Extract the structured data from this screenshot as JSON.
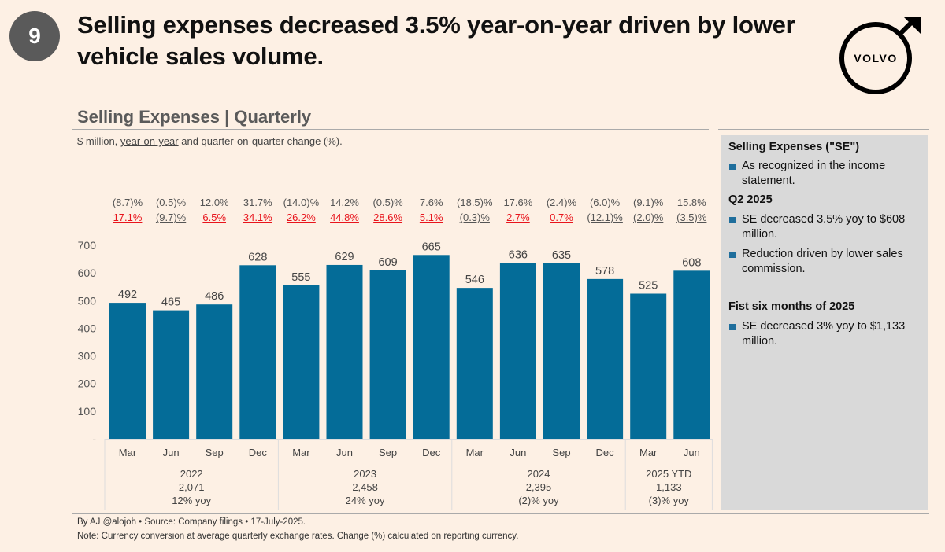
{
  "badge": "9",
  "headline": "Selling expenses decreased 3.5% year-on-year driven by lower vehicle sales volume.",
  "logo": {
    "text": "VOLVO",
    "icon": "volvo-iron-mark-icon"
  },
  "section_title": "Selling Expenses | Quarterly",
  "subtitle": {
    "prefix": "$ million, ",
    "underlined": "year-on-year",
    "suffix": " and quarter-on-quarter change (%)."
  },
  "colors": {
    "bar": "#046c98",
    "positive_yoy": "#e8141c",
    "neutral": "#555555",
    "background": "#fdf0e4",
    "sidebar": "#d9d9d9"
  },
  "sidebar": {
    "sections": [
      {
        "heading": "Selling Expenses (\"SE\")",
        "bullets": [
          "As recognized in the income statement."
        ]
      },
      {
        "heading": "Q2 2025",
        "bullets": [
          "SE decreased 3.5% yoy to $608 million.",
          "Reduction driven by lower sales commission."
        ]
      },
      {
        "heading": "Fist six months of 2025",
        "bullets": [
          "SE decreased 3% yoy to $1,133 million."
        ]
      }
    ]
  },
  "chart_data": {
    "type": "bar",
    "title": "Selling Expenses | Quarterly",
    "ylabel": "$ million",
    "ylim": [
      0,
      700
    ],
    "yticks": [
      0,
      100,
      200,
      300,
      400,
      500,
      600,
      700
    ],
    "ytick_labels": [
      "-",
      "100",
      "200",
      "300",
      "400",
      "500",
      "600",
      "700"
    ],
    "categories": [
      "Mar",
      "Jun",
      "Sep",
      "Dec",
      "Mar",
      "Jun",
      "Sep",
      "Dec",
      "Mar",
      "Jun",
      "Sep",
      "Dec",
      "Mar",
      "Jun"
    ],
    "values": [
      492,
      465,
      486,
      628,
      555,
      629,
      609,
      665,
      546,
      636,
      635,
      578,
      525,
      608
    ],
    "qoq_change": [
      "(8.7)%",
      "(0.5)%",
      "12.0%",
      "31.7%",
      "(14.0)%",
      "14.2%",
      "(0.5)%",
      "7.6%",
      "(18.5)%",
      "17.6%",
      "(2.4)%",
      "(6.0)%",
      "(9.1)%",
      "15.8%"
    ],
    "yoy_change": [
      "17.1%",
      "(9.7)%",
      "6.5%",
      "34.1%",
      "26.2%",
      "44.8%",
      "28.6%",
      "5.1%",
      "(0.3)%",
      "2.7%",
      "0.7%",
      "(12.1)%",
      "(2.0)%",
      "(3.5)%"
    ],
    "yoy_positive": [
      true,
      false,
      true,
      true,
      true,
      true,
      true,
      true,
      false,
      true,
      true,
      false,
      false,
      false
    ],
    "groups": [
      {
        "label": "2022",
        "total": "2,071",
        "change": "12% yoy",
        "count": 4
      },
      {
        "label": "2023",
        "total": "2,458",
        "change": "24% yoy",
        "count": 4
      },
      {
        "label": "2024",
        "total": "2,395",
        "change": "(2)% yoy",
        "count": 4
      },
      {
        "label": "2025 YTD",
        "total": "1,133",
        "change": "(3)% yoy",
        "count": 2
      }
    ],
    "legend": "none",
    "grid": false
  },
  "footer": {
    "credit": "By AJ @alojoh • Source: Company filings • 17-July-2025.",
    "note": "Note: Currency conversion at average quarterly exchange rates. Change (%) calculated on reporting currency."
  }
}
